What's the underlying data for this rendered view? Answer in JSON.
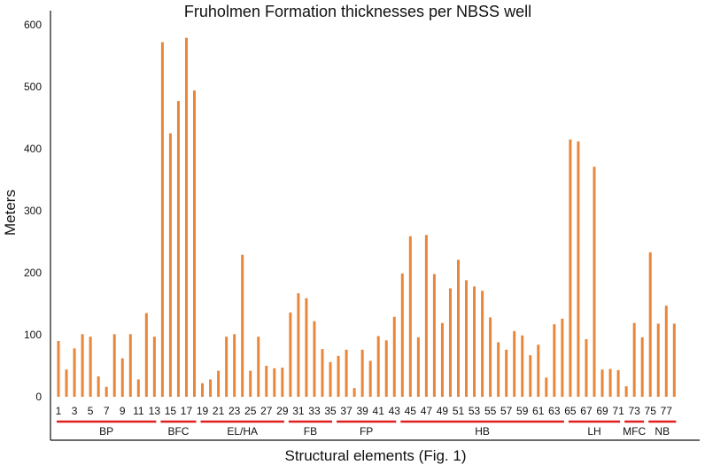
{
  "chart_data": {
    "type": "bar",
    "title": "Fruholmen Formation thicknesses per NBSS well",
    "xlabel": "Structural elements (Fig. 1)",
    "ylabel": "Meters",
    "ylim": [
      0,
      600
    ],
    "yticks": [
      0,
      100,
      200,
      300,
      400,
      500,
      600
    ],
    "grid": false,
    "bar_color": "#E8863A",
    "group_line_color": "#E02020",
    "categories": [
      "1",
      "2",
      "3",
      "4",
      "5",
      "6",
      "7",
      "8",
      "9",
      "10",
      "11",
      "12",
      "13",
      "14",
      "15",
      "16",
      "17",
      "18",
      "19",
      "20",
      "21",
      "22",
      "23",
      "24",
      "25",
      "26",
      "27",
      "28",
      "29",
      "30",
      "31",
      "32",
      "33",
      "34",
      "35",
      "36",
      "37",
      "38",
      "39",
      "40",
      "41",
      "42",
      "43",
      "44",
      "45",
      "46",
      "47",
      "48",
      "49",
      "50",
      "51",
      "52",
      "53",
      "54",
      "55",
      "56",
      "57",
      "58",
      "59",
      "60",
      "61",
      "62",
      "63",
      "64",
      "65",
      "66",
      "67",
      "68",
      "69",
      "70",
      "71",
      "72",
      "73",
      "74",
      "75",
      "76",
      "77",
      "78"
    ],
    "xtick_labels": [
      "1",
      "3",
      "5",
      "7",
      "9",
      "11",
      "13",
      "15",
      "17",
      "19",
      "21",
      "23",
      "25",
      "27",
      "29",
      "31",
      "33",
      "35",
      "37",
      "39",
      "41",
      "43",
      "45",
      "47",
      "49",
      "51",
      "53",
      "55",
      "57",
      "59",
      "61",
      "63",
      "65",
      "67",
      "69",
      "71",
      "73",
      "75",
      "77"
    ],
    "values": [
      90,
      44,
      78,
      101,
      97,
      33,
      16,
      101,
      62,
      101,
      28,
      135,
      97,
      572,
      425,
      477,
      579,
      494,
      22,
      28,
      42,
      97,
      101,
      229,
      42,
      97,
      50,
      46,
      47,
      136,
      167,
      159,
      122,
      77,
      56,
      66,
      76,
      14,
      76,
      58,
      98,
      91,
      129,
      199,
      259,
      96,
      261,
      198,
      119,
      175,
      221,
      188,
      178,
      171,
      128,
      88,
      76,
      106,
      99,
      67,
      84,
      31,
      117,
      126,
      415,
      412,
      93,
      371,
      44,
      45,
      43,
      17,
      119,
      96,
      233,
      118,
      147,
      118
    ],
    "groups": [
      {
        "label": "BP",
        "start": 1,
        "end": 13
      },
      {
        "label": "BFC",
        "start": 14,
        "end": 18
      },
      {
        "label": "EL/HA",
        "start": 19,
        "end": 29
      },
      {
        "label": "FB",
        "start": 30,
        "end": 35
      },
      {
        "label": "FP",
        "start": 36,
        "end": 43
      },
      {
        "label": "HB",
        "start": 44,
        "end": 64
      },
      {
        "label": "LH",
        "start": 65,
        "end": 71
      },
      {
        "label": "MFC",
        "start": 72,
        "end": 74
      },
      {
        "label": "NB",
        "start": 75,
        "end": 78
      }
    ]
  }
}
